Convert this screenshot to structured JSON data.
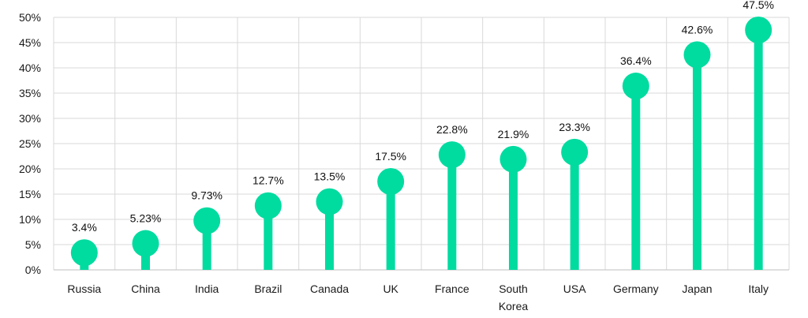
{
  "chart_data": {
    "type": "lollipop",
    "categories": [
      "Russia",
      "China",
      "India",
      "Brazil",
      "Canada",
      "UK",
      "France",
      "South Korea",
      "USA",
      "Germany",
      "Japan",
      "Italy"
    ],
    "category_lines": [
      [
        "Russia"
      ],
      [
        "China"
      ],
      [
        "India"
      ],
      [
        "Brazil"
      ],
      [
        "Canada"
      ],
      [
        "UK"
      ],
      [
        "France"
      ],
      [
        "South",
        "Korea"
      ],
      [
        "USA"
      ],
      [
        "Germany"
      ],
      [
        "Japan"
      ],
      [
        "Italy"
      ]
    ],
    "values": [
      3.4,
      5.23,
      9.73,
      12.7,
      13.5,
      17.5,
      22.8,
      21.9,
      23.3,
      36.4,
      42.6,
      47.5
    ],
    "data_labels": [
      "3.4%",
      "5.23%",
      "9.73%",
      "12.7%",
      "13.5%",
      "17.5%",
      "22.8%",
      "21.9%",
      "23.3%",
      "36.4%",
      "42.6%",
      "47.5%"
    ],
    "yticks": [
      0,
      5,
      10,
      15,
      20,
      25,
      30,
      35,
      40,
      45,
      50
    ],
    "ytick_labels": [
      "0%",
      "5%",
      "10%",
      "15%",
      "20%",
      "25%",
      "30%",
      "35%",
      "40%",
      "45%",
      "50%"
    ],
    "ylim": [
      0,
      50
    ],
    "grid": true,
    "legend": false,
    "color": "#00dba0",
    "title": "",
    "xlabel": "",
    "ylabel": ""
  }
}
